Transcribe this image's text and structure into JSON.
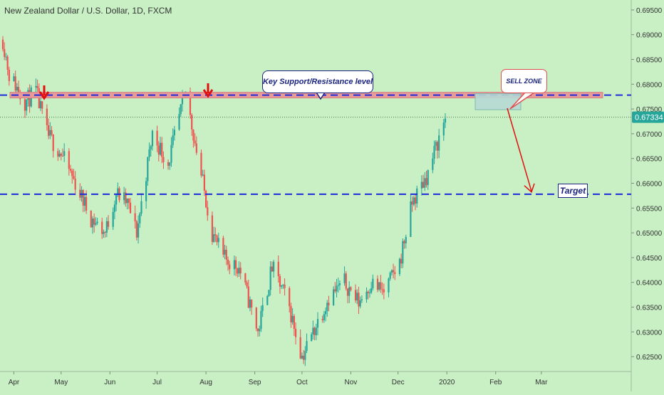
{
  "chart_data": {
    "type": "candlestick",
    "title": "New Zealand Dollar / U.S. Dollar, 1D, FXCM",
    "x_ticks": [
      "Apr",
      "May",
      "Jun",
      "Jul",
      "Aug",
      "Sep",
      "Oct",
      "Nov",
      "Dec",
      "2020",
      "Feb",
      "Mar"
    ],
    "y_ticks": [
      "0.69500",
      "0.69000",
      "0.68500",
      "0.68000",
      "0.67500",
      "0.67000",
      "0.66500",
      "0.66000",
      "0.65500",
      "0.65000",
      "0.64500",
      "0.64000",
      "0.63500",
      "0.63000",
      "0.62500"
    ],
    "ylim": [
      0.622,
      0.697
    ],
    "last_price": "0.67334",
    "resistance_level": 0.6778,
    "support_level": 0.6578,
    "price_path": [
      [
        "2019-03-25",
        0.689
      ],
      [
        "2019-03-29",
        0.682
      ],
      [
        "2019-04-08",
        0.6765
      ],
      [
        "2019-04-15",
        0.6785
      ],
      [
        "2019-04-22",
        0.67
      ],
      [
        "2019-05-01",
        0.666
      ],
      [
        "2019-05-10",
        0.66
      ],
      [
        "2019-05-20",
        0.653
      ],
      [
        "2019-05-29",
        0.65
      ],
      [
        "2019-06-05",
        0.658
      ],
      [
        "2019-06-12",
        0.656
      ],
      [
        "2019-06-18",
        0.65
      ],
      [
        "2019-06-28",
        0.67
      ],
      [
        "2019-07-08",
        0.664
      ],
      [
        "2019-07-19",
        0.6785
      ],
      [
        "2019-07-30",
        0.66
      ],
      [
        "2019-08-05",
        0.65
      ],
      [
        "2019-08-12",
        0.645
      ],
      [
        "2019-08-22",
        0.643
      ],
      [
        "2019-09-03",
        0.63
      ],
      [
        "2019-09-12",
        0.643
      ],
      [
        "2019-09-22",
        0.636
      ],
      [
        "2019-10-01",
        0.625
      ],
      [
        "2019-10-08",
        0.63
      ],
      [
        "2019-10-18",
        0.637
      ],
      [
        "2019-10-28",
        0.64
      ],
      [
        "2019-11-06",
        0.636
      ],
      [
        "2019-11-14",
        0.64
      ],
      [
        "2019-11-22",
        0.638
      ],
      [
        "2019-12-02",
        0.644
      ],
      [
        "2019-12-10",
        0.656
      ],
      [
        "2019-12-20",
        0.662
      ],
      [
        "2019-12-31",
        0.6733
      ]
    ],
    "annotations": {
      "resistance_label": "Key Support/Resistance level",
      "sell_zone_label": "SELL ZONE",
      "target_label": "Target"
    }
  },
  "colors": {
    "background": "#c8f0c4",
    "bull_candle": "#26a69a",
    "bear_candle": "#ef5350",
    "level_line": "#1e2bd6",
    "resistance_band": "#e89a9a",
    "sell_zone_box": "#b6d9d4",
    "arrow": "#e01010",
    "axis_text": "#333333"
  }
}
